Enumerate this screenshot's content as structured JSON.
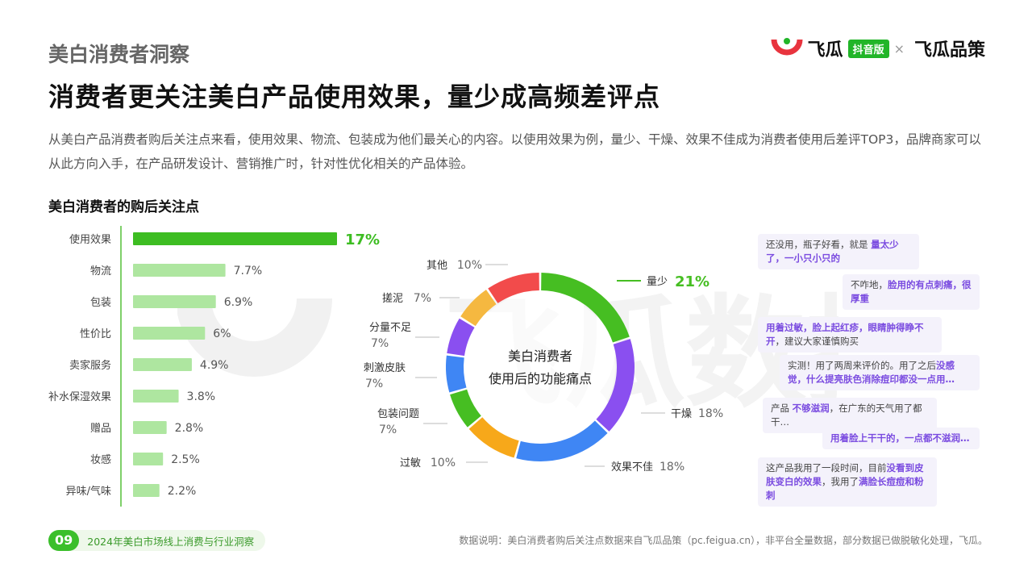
{
  "header": {
    "section": "美白消费者洞察",
    "headline": "消费者更关注美白产品使用效果，量少成高频差评点",
    "description": "从美白产品消费者购后关注点来看，使用效果、物流、包装成为他们最关心的内容。以使用效果为例，量少、干燥、效果不佳成为消费者使用后差评TOP3，品牌商家可以从此方向入手，在产品研发设计、营销推广时，针对性优化相关的产品体验。"
  },
  "logo": {
    "brand1": "飞瓜",
    "tag": "抖音版",
    "separator": "×",
    "brand2": "飞瓜品策"
  },
  "watermark": "飞瓜数据",
  "chart_data": [
    {
      "type": "bar",
      "orientation": "horizontal",
      "title": "美白消费者的购后关注点",
      "categories": [
        "使用效果",
        "物流",
        "包装",
        "性价比",
        "卖家服务",
        "补水保湿效果",
        "赠品",
        "妆感",
        "异味/气味"
      ],
      "values": [
        17,
        7.7,
        6.9,
        6,
        4.9,
        3.8,
        2.8,
        2.5,
        2.2
      ],
      "value_labels": [
        "17%",
        "7.7%",
        "6.9%",
        "6%",
        "4.9%",
        "3.8%",
        "2.8%",
        "2.5%",
        "2.2%"
      ],
      "xlim": [
        0,
        17
      ],
      "colors": {
        "highlight": "#3dbd22",
        "normal": "#aee6a0",
        "axis": "#7fd06a",
        "highlight_label": "#3dbd22"
      }
    },
    {
      "type": "pie",
      "style": "donut",
      "center_label": [
        "美白消费者",
        "使用后的功能痛点"
      ],
      "slices": [
        {
          "label": "量少",
          "value": 21,
          "value_label": "21%",
          "color": "#46be22",
          "highlight": true
        },
        {
          "label": "干燥",
          "value": 18,
          "value_label": "18%",
          "color": "#8a4ff0"
        },
        {
          "label": "效果不佳",
          "value": 18,
          "value_label": "18%",
          "color": "#3f86f4"
        },
        {
          "label": "过敏",
          "value": 10,
          "value_label": "10%",
          "color": "#f7a81a"
        },
        {
          "label": "包装问题",
          "value": 7,
          "value_label": "7%",
          "color": "#46be22"
        },
        {
          "label": "刺激皮肤",
          "value": 7,
          "value_label": "7%",
          "color": "#3f86f4"
        },
        {
          "label": "分量不足",
          "value": 7,
          "value_label": "7%",
          "color": "#8a4ff0"
        },
        {
          "label": "搓泥",
          "value": 7,
          "value_label": "7%",
          "color": "#f5b840"
        },
        {
          "label": "其他",
          "value": 10,
          "value_label": "10%",
          "color": "#f24b4b"
        }
      ]
    }
  ],
  "reviews": [
    {
      "parts": [
        {
          "t": "还没用，瓶子好看，就是 "
        },
        {
          "t": "量太少了，一小只小只的",
          "hl": true
        }
      ]
    },
    {
      "parts": [
        {
          "t": "不咋地，"
        },
        {
          "t": "脸用的有点刺痛，很厚重",
          "hl": true
        }
      ]
    },
    {
      "parts": [
        {
          "t": "用着过敏，脸上起红疹，眼睛肿得睁不开",
          "hl": true
        },
        {
          "t": "，建议大家谨慎购买"
        }
      ]
    },
    {
      "parts": [
        {
          "t": "实测！用了两周来评价的。用了之后"
        },
        {
          "t": "没感觉，什么提亮肤色消除痘印都没一点用…",
          "hl": true
        }
      ]
    },
    {
      "parts": [
        {
          "t": "产品 "
        },
        {
          "t": "不够滋润",
          "hl": true
        },
        {
          "t": "，在广东的天气用了都干…"
        }
      ]
    },
    {
      "parts": [
        {
          "t": "用着脸上干干的，一点都不滋润…",
          "hl": true
        }
      ]
    },
    {
      "parts": [
        {
          "t": "这产品我用了一段时间，目前"
        },
        {
          "t": "没看到皮肤变白的效果",
          "hl": true
        },
        {
          "t": "，我用了"
        },
        {
          "t": "满脸长痘痘和粉刺",
          "hl": true
        }
      ]
    }
  ],
  "footer": {
    "page_number": "09",
    "report_title": "2024年美白市场线上消费与行业洞察",
    "note": "数据说明：美白消费者购后关注点数据来自飞瓜品策（pc.feigua.cn），非平台全量数据，部分数据已做脱敏化处理，飞瓜。"
  }
}
